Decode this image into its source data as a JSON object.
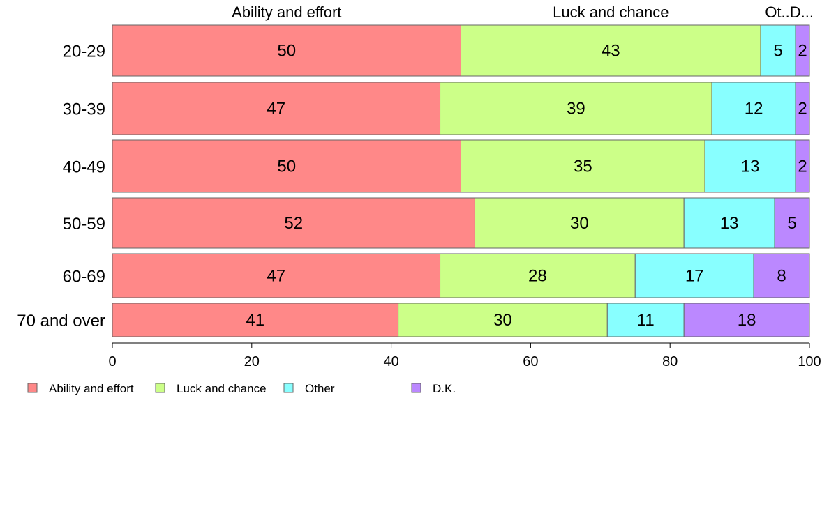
{
  "chart_data": {
    "type": "bar",
    "orientation": "horizontal",
    "stacked": true,
    "categories": [
      "20-29",
      "30-39",
      "40-49",
      "50-59",
      "60-69",
      "70 and over"
    ],
    "series": [
      {
        "name": "Ability and effort",
        "values": [
          50,
          47,
          50,
          52,
          47,
          41
        ],
        "color": "#ff8888"
      },
      {
        "name": "Luck and chance",
        "values": [
          43,
          39,
          35,
          30,
          28,
          30
        ],
        "color": "#ccff88"
      },
      {
        "name": "Other",
        "values": [
          5,
          12,
          13,
          13,
          17,
          11
        ],
        "color": "#88ffff"
      },
      {
        "name": "D.K.",
        "values": [
          2,
          2,
          2,
          5,
          8,
          18
        ],
        "color": "#bb88ff"
      }
    ],
    "top_labels": [
      "Ability and effort",
      "Luck and chance",
      "Ot..D..."
    ],
    "xlim": [
      0,
      100
    ],
    "xticks": [
      0,
      20,
      40,
      60,
      80,
      100
    ],
    "grid": false,
    "legend_position": "bottom-left"
  }
}
